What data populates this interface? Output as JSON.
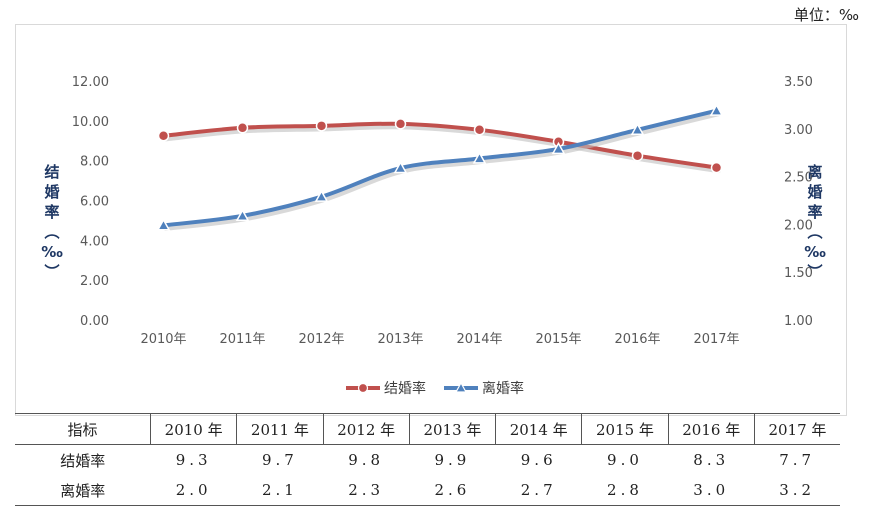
{
  "unit_note": "单位：‰",
  "chart_data": {
    "type": "line",
    "categories": [
      "2010年",
      "2011年",
      "2012年",
      "2013年",
      "2014年",
      "2015年",
      "2016年",
      "2017年"
    ],
    "series": [
      {
        "name": "结婚率",
        "axis": "left",
        "color": "#c0504d",
        "marker": "circle",
        "values": [
          9.3,
          9.7,
          9.8,
          9.9,
          9.6,
          9.0,
          8.3,
          7.7
        ]
      },
      {
        "name": "离婚率",
        "axis": "right",
        "color": "#4f81bd",
        "marker": "triangle",
        "values": [
          2.0,
          2.1,
          2.3,
          2.6,
          2.7,
          2.8,
          3.0,
          3.2
        ]
      }
    ],
    "y_left": {
      "label": "结婚率（‰）",
      "ylim": [
        0,
        12
      ],
      "ticks": [
        "0.00",
        "2.00",
        "4.00",
        "6.00",
        "8.00",
        "10.00",
        "12.00"
      ]
    },
    "y_right": {
      "label": "离婚率（‰）",
      "ylim": [
        1,
        3.5
      ],
      "ticks": [
        "1.00",
        "1.50",
        "2.00",
        "2.50",
        "3.00",
        "3.50"
      ]
    },
    "legend": "bottom",
    "grid": false
  },
  "table": {
    "header_label": "指标",
    "years": [
      "2010 年",
      "2011 年",
      "2012 年",
      "2013 年",
      "2014 年",
      "2015 年",
      "2016 年",
      "2017 年"
    ],
    "rows": [
      {
        "label": "结婚率",
        "values": [
          "9.3",
          "9.7",
          "9.8",
          "9.9",
          "9.6",
          "9.0",
          "8.3",
          "7.7"
        ]
      },
      {
        "label": "离婚率",
        "values": [
          "2.0",
          "2.1",
          "2.3",
          "2.6",
          "2.7",
          "2.8",
          "3.0",
          "3.2"
        ]
      }
    ]
  }
}
